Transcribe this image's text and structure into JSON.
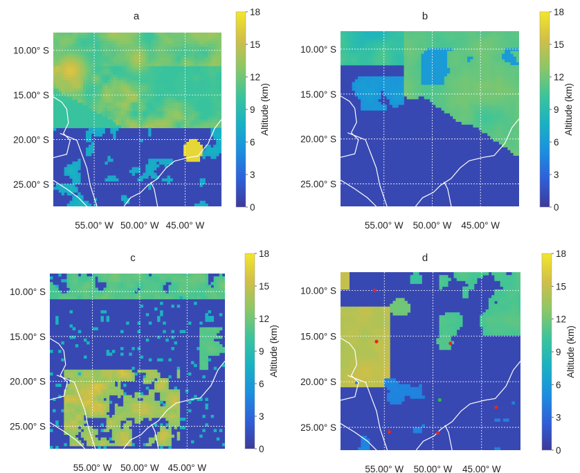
{
  "figure": {
    "panels": [
      {
        "label": "a",
        "scenario": "a"
      },
      {
        "label": "b",
        "scenario": "b"
      },
      {
        "label": "c",
        "scenario": "c"
      },
      {
        "label": "d",
        "scenario": "d"
      }
    ],
    "lat_ticks": [
      "10.00° S",
      "15.00° S",
      "20.00° S",
      "25.00° S"
    ],
    "lon_ticks": [
      "55.00° W",
      "50.00° W",
      "45.00° W"
    ],
    "colorbar": {
      "label": "Altitude (km)",
      "ticks": [
        0,
        3,
        6,
        9,
        12,
        15,
        18
      ],
      "colors": [
        "#3d3a99",
        "#2f5fd8",
        "#1b8fe0",
        "#19b2c2",
        "#3cc49a",
        "#8cc766",
        "#d0bf48",
        "#f4e62a"
      ]
    }
  },
  "chart_data": [
    {
      "type": "heatmap",
      "panel": "a",
      "title": "a",
      "xlabel": "",
      "ylabel": "",
      "x_ticks": [
        "55.00° W",
        "50.00° W",
        "45.00° W"
      ],
      "y_ticks": [
        "10.00° S",
        "15.00° S",
        "20.00° S",
        "25.00° S"
      ],
      "xlim": [
        -59.5,
        -41.0
      ],
      "ylim": [
        -27.5,
        -8.0
      ],
      "colorbar_label": "Altitude (km)",
      "zlim": [
        0,
        18
      ],
      "grid": true,
      "description_values": {
        "background_km": 1,
        "cloud_band_km": [
          9,
          13
        ],
        "max_km": 18
      }
    },
    {
      "type": "heatmap",
      "panel": "b",
      "title": "b",
      "xlabel": "",
      "ylabel": "",
      "x_ticks": [
        "55.00° W",
        "50.00° W",
        "45.00° W"
      ],
      "y_ticks": [
        "10.00° S",
        "15.00° S",
        "20.00° S",
        "25.00° S"
      ],
      "xlim": [
        -59.5,
        -41.0
      ],
      "ylim": [
        -27.5,
        -8.0
      ],
      "colorbar_label": "Altitude (km)",
      "zlim": [
        0,
        18
      ],
      "grid": true,
      "description_values": {
        "background_km": 1,
        "cloud_band_km": [
          10,
          13
        ],
        "max_km": 13
      }
    },
    {
      "type": "heatmap",
      "panel": "c",
      "title": "c",
      "xlabel": "",
      "ylabel": "",
      "x_ticks": [
        "55.00° W",
        "50.00° W",
        "45.00° W"
      ],
      "y_ticks": [
        "10.00° S",
        "15.00° S",
        "20.00° S",
        "25.00° S"
      ],
      "xlim": [
        -59.5,
        -41.0
      ],
      "ylim": [
        -27.5,
        -8.0
      ],
      "colorbar_label": "Altitude (km)",
      "zlim": [
        0,
        18
      ],
      "grid": true,
      "description_values": {
        "background_km": 1,
        "cloud_band_km": [
          9,
          16
        ],
        "max_km": 18
      }
    },
    {
      "type": "heatmap",
      "panel": "d",
      "title": "d",
      "xlabel": "",
      "ylabel": "",
      "x_ticks": [
        "55.00° W",
        "50.00° W",
        "45.00° W"
      ],
      "y_ticks": [
        "10.00° S",
        "15.00° S",
        "20.00° S",
        "25.00° S"
      ],
      "xlim": [
        -59.5,
        -41.0
      ],
      "ylim": [
        -27.5,
        -8.0
      ],
      "colorbar_label": "Altitude (km)",
      "zlim": [
        0,
        18
      ],
      "grid": true,
      "description_values": {
        "background_km": 1,
        "cloud_band_km": [
          9,
          15
        ],
        "max_km": 16
      },
      "markers": [
        {
          "lon": -56.0,
          "lat": -10.0,
          "color": "#e0282a"
        },
        {
          "lon": -55.8,
          "lat": -15.6,
          "color": "#e0282a"
        },
        {
          "lon": -48.2,
          "lat": -15.8,
          "color": "#e0282a"
        },
        {
          "lon": -49.3,
          "lat": -22.0,
          "color": "#2dbf3a"
        },
        {
          "lon": -43.5,
          "lat": -22.8,
          "color": "#e0282a"
        },
        {
          "lon": -54.5,
          "lat": -25.5,
          "color": "#e0282a"
        },
        {
          "lon": -49.5,
          "lat": -25.6,
          "color": "#e0282a"
        }
      ]
    }
  ]
}
